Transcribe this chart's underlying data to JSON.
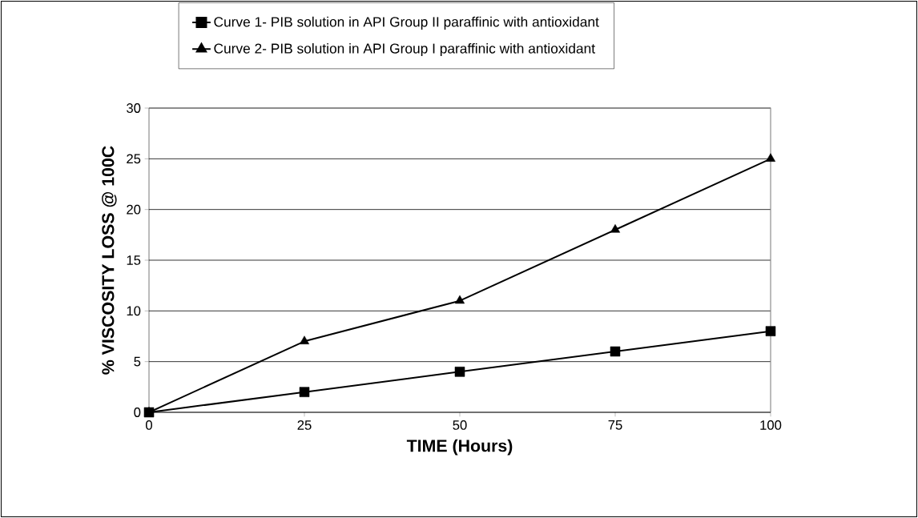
{
  "chart_data": {
    "type": "line",
    "xlabel": "TIME (Hours)",
    "ylabel": "% VISCOSITY LOSS  @ 100C",
    "x": [
      0,
      25,
      50,
      75,
      100
    ],
    "series": [
      {
        "name": "Curve 1- PIB solution in API Group II paraffinic with antioxidant",
        "color": "#000000",
        "marker": "square",
        "values": [
          0,
          2,
          4,
          6,
          8
        ]
      },
      {
        "name": "Curve 2- PIB solution in API Group I paraffinic with antioxidant",
        "color": "#000000",
        "marker": "triangle",
        "values": [
          0,
          7,
          11,
          18,
          25
        ]
      }
    ],
    "xlim": [
      0,
      100
    ],
    "xticks": [
      0,
      25,
      50,
      75,
      100
    ],
    "ylim": [
      0,
      30
    ],
    "yticks": [
      0,
      5,
      10,
      15,
      20,
      25,
      30
    ],
    "grid": "y",
    "legend": "top",
    "line_style": "solid"
  }
}
